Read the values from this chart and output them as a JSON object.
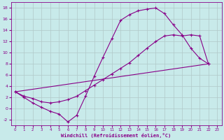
{
  "xlabel": "Windchill (Refroidissement éolien,°C)",
  "bg_color": "#c8eaea",
  "grid_color": "#b0c8c8",
  "line_color": "#880088",
  "xlim": [
    -0.5,
    23.5
  ],
  "ylim": [
    -3,
    19
  ],
  "xticks": [
    0,
    1,
    2,
    3,
    4,
    5,
    6,
    7,
    8,
    9,
    10,
    11,
    12,
    13,
    14,
    15,
    16,
    17,
    18,
    19,
    20,
    21,
    22,
    23
  ],
  "yticks": [
    -2,
    0,
    2,
    4,
    6,
    8,
    10,
    12,
    14,
    16,
    18
  ],
  "curve1_x": [
    0,
    1,
    2,
    3,
    4,
    5,
    6,
    7,
    8,
    9,
    10,
    11,
    12,
    13,
    14,
    15,
    16,
    17,
    18,
    19,
    20,
    21,
    22
  ],
  "curve1_y": [
    3.0,
    2.0,
    1.0,
    0.2,
    -0.5,
    -1.0,
    -2.4,
    -1.2,
    2.2,
    5.8,
    9.2,
    12.5,
    15.8,
    16.8,
    17.5,
    17.8,
    18.0,
    17.0,
    15.0,
    13.2,
    10.8,
    9.0,
    8.0
  ],
  "curve2_x": [
    0,
    1,
    2,
    3,
    4,
    5,
    6,
    7,
    8,
    9,
    10,
    11,
    12,
    13,
    14,
    15,
    16,
    17,
    18,
    19,
    20,
    21,
    22
  ],
  "curve2_y": [
    3.0,
    2.2,
    1.8,
    1.2,
    1.0,
    1.2,
    1.6,
    2.2,
    3.2,
    4.2,
    5.2,
    6.2,
    7.2,
    8.2,
    9.5,
    10.8,
    12.0,
    13.0,
    13.2,
    13.0,
    13.2,
    13.0,
    8.0
  ],
  "curve3_x": [
    0,
    22
  ],
  "curve3_y": [
    3.0,
    8.0
  ]
}
